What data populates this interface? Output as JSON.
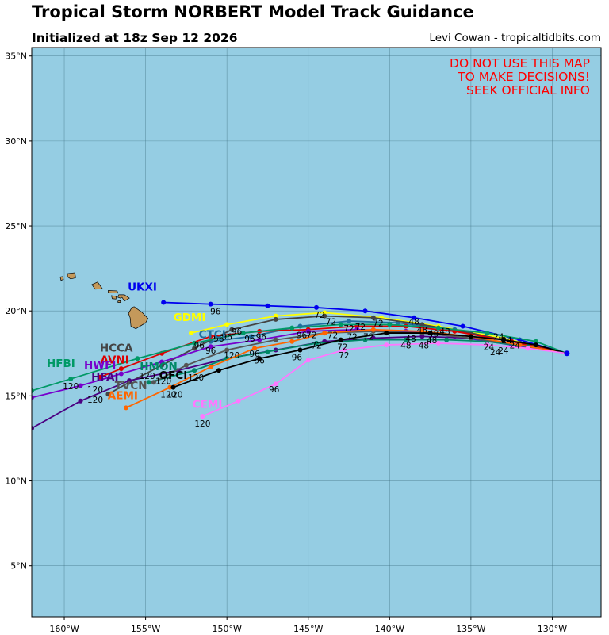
{
  "title": "Tropical Storm NORBERT Model Track Guidance",
  "subtitle": "Initialized at 18z Sep 12 2026",
  "credit": "Levi Cowan - tropicaltidbits.com",
  "warning": [
    "DO NOT USE THIS MAP",
    "TO MAKE DECISIONS!",
    "SEEK OFFICIAL INFO"
  ],
  "colors": {
    "ocean": "#95cde3",
    "land": "#c4995b",
    "warning": "#ff0000"
  },
  "axes": {
    "lon_range": [
      -162,
      -127
    ],
    "lat_range": [
      2,
      35.5
    ],
    "lon_ticks": [
      -160,
      -155,
      -150,
      -145,
      -140,
      -135,
      -130
    ],
    "lon_tick_labels": [
      "160°W",
      "155°W",
      "150°W",
      "145°W",
      "140°W",
      "135°W",
      "130°W"
    ],
    "lat_ticks": [
      5,
      10,
      15,
      20,
      25,
      30,
      35
    ],
    "lat_tick_labels": [
      "5°N",
      "10°N",
      "15°N",
      "20°N",
      "25°N",
      "30°N",
      "35°N"
    ],
    "grid": true
  },
  "chart_data": {
    "type": "track_map",
    "origin": {
      "lon": -129.1,
      "lat": 17.5
    },
    "models": [
      {
        "name": "UKXI",
        "color": "#0000ee",
        "label_at": [
          -155.2,
          21.2
        ],
        "track": [
          [
            -129.1,
            17.5
          ],
          [
            -132,
            18.3
          ],
          [
            -135.5,
            19.1
          ],
          [
            -138.5,
            19.6
          ],
          [
            -141.5,
            20.0
          ],
          [
            -144.5,
            20.2
          ],
          [
            -147.5,
            20.3
          ],
          [
            -151,
            20.4
          ],
          [
            -153.9,
            20.5
          ]
        ]
      },
      {
        "name": "GDMI",
        "color": "#ffff00",
        "label_at": [
          -152.3,
          19.4
        ],
        "track": [
          [
            -129.1,
            17.5
          ],
          [
            -133,
            18.4
          ],
          [
            -137,
            19.1
          ],
          [
            -140.5,
            19.6
          ],
          [
            -144,
            19.9
          ],
          [
            -147,
            19.7
          ],
          [
            -150,
            19.2
          ],
          [
            -152.2,
            18.7
          ]
        ]
      },
      {
        "name": "CTCI",
        "color": "#1f6f9f",
        "label_at": [
          -150.9,
          18.4
        ],
        "track": [
          [
            -129.1,
            17.5
          ],
          [
            -132.5,
            18.2
          ],
          [
            -136,
            18.9
          ],
          [
            -139.5,
            19.3
          ],
          [
            -142.5,
            19.4
          ],
          [
            -145.5,
            19.1
          ],
          [
            -148.5,
            18.5
          ],
          [
            -151,
            18.2
          ]
        ]
      },
      {
        "name": "HCCA",
        "color": "#444444",
        "label_at": [
          -156.8,
          17.6
        ],
        "track": [
          [
            -129.1,
            17.5
          ],
          [
            -132,
            18.1
          ],
          [
            -135,
            18.7
          ],
          [
            -138,
            19.2
          ],
          [
            -141,
            19.6
          ],
          [
            -144,
            19.7
          ],
          [
            -147,
            19.5
          ],
          [
            -149.7,
            18.9
          ],
          [
            -152,
            17.8
          ],
          [
            -154,
            16.8
          ],
          [
            -156,
            15.8
          ],
          [
            -157.3,
            15.1
          ]
        ]
      },
      {
        "name": "AVNI",
        "color": "#dd0000",
        "label_at": [
          -156.9,
          16.9
        ],
        "track": [
          [
            -129.1,
            17.5
          ],
          [
            -132.5,
            18.2
          ],
          [
            -136,
            18.8
          ],
          [
            -139,
            19.1
          ],
          [
            -142,
            19.1
          ],
          [
            -145,
            18.9
          ],
          [
            -148,
            18.8
          ],
          [
            -151,
            18.5
          ],
          [
            -154,
            17.5
          ],
          [
            -156.5,
            16.6
          ],
          [
            -157.8,
            16.1
          ]
        ]
      },
      {
        "name": "HWFI",
        "color": "#7700cc",
        "label_at": [
          -157.8,
          16.6
        ],
        "track": [
          [
            -129.1,
            17.5
          ],
          [
            -132.5,
            18.0
          ],
          [
            -136,
            18.5
          ],
          [
            -139,
            18.8
          ],
          [
            -142,
            18.9
          ],
          [
            -145,
            18.8
          ],
          [
            -148,
            18.3
          ],
          [
            -151,
            17.9
          ],
          [
            -154,
            17.0
          ],
          [
            -156.5,
            16.3
          ],
          [
            -159,
            15.6
          ],
          [
            -162,
            14.9
          ]
        ]
      },
      {
        "name": "HFBI",
        "color": "#009966",
        "label_at": [
          -160.2,
          16.7
        ],
        "track": [
          [
            -129.1,
            17.5
          ],
          [
            -131,
            18.2
          ],
          [
            -134,
            18.7
          ],
          [
            -137,
            19.0
          ],
          [
            -140,
            19.2
          ],
          [
            -143,
            19.2
          ],
          [
            -146,
            19.0
          ],
          [
            -149,
            18.7
          ],
          [
            -152,
            18.1
          ],
          [
            -155.5,
            17.2
          ],
          [
            -159.6,
            16.0
          ],
          [
            -162,
            15.3
          ]
        ]
      },
      {
        "name": "HFAI",
        "color": "#4b0082",
        "label_at": [
          -157.5,
          15.9
        ],
        "track": [
          [
            -129.1,
            17.5
          ],
          [
            -132,
            18.0
          ],
          [
            -135,
            18.4
          ],
          [
            -138,
            18.5
          ],
          [
            -141,
            18.4
          ],
          [
            -144,
            18.2
          ],
          [
            -147,
            17.7
          ],
          [
            -150,
            17.2
          ],
          [
            -153,
            16.5
          ],
          [
            -156,
            15.9
          ],
          [
            -159,
            14.7
          ],
          [
            -162,
            13.1
          ]
        ]
      },
      {
        "name": "HMON",
        "color": "#008866",
        "label_at": [
          -154.2,
          16.5
        ],
        "track": [
          [
            -129.1,
            17.5
          ],
          [
            -131.5,
            17.9
          ],
          [
            -134,
            18.2
          ],
          [
            -136.5,
            18.3
          ],
          [
            -139,
            18.3
          ],
          [
            -141.5,
            18.3
          ],
          [
            -144.5,
            18.1
          ],
          [
            -147.5,
            17.6
          ],
          [
            -150,
            17.2
          ],
          [
            -152,
            16.5
          ],
          [
            -154.8,
            15.8
          ]
        ]
      },
      {
        "name": "TVCN",
        "color": "#555555",
        "label_at": [
          -155.9,
          15.4
        ],
        "track": [
          [
            -129.1,
            17.5
          ],
          [
            -132,
            18.0
          ],
          [
            -135,
            18.4
          ],
          [
            -138,
            18.7
          ],
          [
            -141,
            18.8
          ],
          [
            -144,
            18.7
          ],
          [
            -147,
            18.3
          ],
          [
            -150,
            17.7
          ],
          [
            -152.5,
            16.8
          ],
          [
            -154.5,
            15.8
          ]
        ]
      },
      {
        "name": "AEMI",
        "color": "#ff6600",
        "label_at": [
          -156.4,
          14.8
        ],
        "track": [
          [
            -129.1,
            17.5
          ],
          [
            -132,
            18.0
          ],
          [
            -135,
            18.5
          ],
          [
            -138,
            18.8
          ],
          [
            -141,
            18.9
          ],
          [
            -144,
            18.7
          ],
          [
            -146,
            18.2
          ],
          [
            -148.3,
            17.8
          ],
          [
            -151,
            16.7
          ],
          [
            -153.5,
            15.5
          ],
          [
            -156.2,
            14.3
          ]
        ]
      },
      {
        "name": "OFCI",
        "color": "#000000",
        "label_at": [
          -153.3,
          16.0
        ],
        "track": [
          [
            -129.1,
            17.5
          ],
          [
            -131,
            18.0
          ],
          [
            -133,
            18.3
          ],
          [
            -135,
            18.5
          ],
          [
            -137.5,
            18.7
          ],
          [
            -140.2,
            18.7
          ],
          [
            -143,
            18.3
          ],
          [
            -145.5,
            17.7
          ],
          [
            -148,
            17.2
          ],
          [
            -150.5,
            16.5
          ],
          [
            -153.3,
            15.5
          ]
        ]
      },
      {
        "name": "CEMI",
        "color": "#ff77ff",
        "label_at": [
          -151.2,
          14.3
        ],
        "track": [
          [
            -129.1,
            17.5
          ],
          [
            -131.5,
            17.8
          ],
          [
            -134,
            18.0
          ],
          [
            -137,
            18.1
          ],
          [
            -140.2,
            18.0
          ],
          [
            -142.8,
            17.7
          ],
          [
            -145,
            17.1
          ],
          [
            -147,
            15.7
          ],
          [
            -149.3,
            14.7
          ],
          [
            -151.5,
            13.8
          ]
        ]
      }
    ],
    "hour_labels": [
      {
        "text": "24",
        "at": [
          -133.3,
          18.3
        ]
      },
      {
        "text": "24",
        "at": [
          -132.8,
          18.1
        ]
      },
      {
        "text": "24",
        "at": [
          -133.9,
          17.7
        ]
      },
      {
        "text": "24",
        "at": [
          -133.5,
          17.4
        ]
      },
      {
        "text": "24",
        "at": [
          -132.3,
          17.8
        ]
      },
      {
        "text": "24",
        "at": [
          -133.0,
          17.5
        ]
      },
      {
        "text": "48",
        "at": [
          -138.5,
          19.2
        ]
      },
      {
        "text": "48",
        "at": [
          -138.0,
          18.7
        ]
      },
      {
        "text": "48",
        "at": [
          -137.3,
          18.5
        ]
      },
      {
        "text": "48",
        "at": [
          -138.7,
          18.2
        ]
      },
      {
        "text": "48",
        "at": [
          -139.0,
          17.8
        ]
      },
      {
        "text": "48",
        "at": [
          -137.9,
          17.8
        ]
      },
      {
        "text": "48",
        "at": [
          -136.6,
          18.6
        ]
      },
      {
        "text": "48",
        "at": [
          -137.4,
          18.1
        ]
      },
      {
        "text": "72",
        "at": [
          -144.3,
          19.6
        ]
      },
      {
        "text": "72",
        "at": [
          -143.6,
          19.2
        ]
      },
      {
        "text": "72",
        "at": [
          -142.5,
          18.8
        ]
      },
      {
        "text": "72",
        "at": [
          -141.8,
          18.9
        ]
      },
      {
        "text": "72",
        "at": [
          -140.7,
          19.1
        ]
      },
      {
        "text": "72",
        "at": [
          -143.5,
          18.4
        ]
      },
      {
        "text": "72",
        "at": [
          -142.3,
          18.3
        ]
      },
      {
        "text": "72",
        "at": [
          -144.8,
          18.4
        ]
      },
      {
        "text": "72",
        "at": [
          -141.3,
          18.3
        ]
      },
      {
        "text": "72",
        "at": [
          -144.5,
          17.8
        ]
      },
      {
        "text": "72",
        "at": [
          -142.9,
          17.7
        ]
      },
      {
        "text": "72",
        "at": [
          -142.8,
          17.2
        ]
      },
      {
        "text": "96",
        "at": [
          -150.7,
          19.8
        ]
      },
      {
        "text": "96",
        "at": [
          -149.4,
          18.6
        ]
      },
      {
        "text": "96",
        "at": [
          -150.0,
          18.3
        ]
      },
      {
        "text": "96",
        "at": [
          -148.6,
          18.2
        ]
      },
      {
        "text": "96",
        "at": [
          -147.9,
          18.3
        ]
      },
      {
        "text": "96",
        "at": [
          -145.4,
          18.4
        ]
      },
      {
        "text": "96",
        "at": [
          -151.7,
          17.8
        ]
      },
      {
        "text": "96",
        "at": [
          -151.0,
          17.5
        ]
      },
      {
        "text": "96",
        "at": [
          -150.5,
          18.2
        ]
      },
      {
        "text": "96",
        "at": [
          -148.3,
          17.3
        ]
      },
      {
        "text": "96",
        "at": [
          -148.0,
          16.9
        ]
      },
      {
        "text": "96",
        "at": [
          -145.7,
          17.1
        ]
      },
      {
        "text": "96",
        "at": [
          -147.1,
          15.2
        ]
      },
      {
        "text": "120",
        "at": [
          -149.7,
          17.2
        ]
      },
      {
        "text": "120",
        "at": [
          -154.9,
          16.0
        ]
      },
      {
        "text": "120",
        "at": [
          -153.9,
          15.7
        ]
      },
      {
        "text": "120",
        "at": [
          -151.9,
          15.9
        ]
      },
      {
        "text": "120",
        "at": [
          -159.6,
          15.4
        ]
      },
      {
        "text": "120",
        "at": [
          -158.1,
          15.2
        ]
      },
      {
        "text": "120",
        "at": [
          -158.1,
          14.6
        ]
      },
      {
        "text": "120",
        "at": [
          -153.6,
          14.9
        ]
      },
      {
        "text": "120",
        "at": [
          -153.2,
          14.9
        ]
      },
      {
        "text": "120",
        "at": [
          -151.5,
          13.2
        ]
      }
    ]
  }
}
